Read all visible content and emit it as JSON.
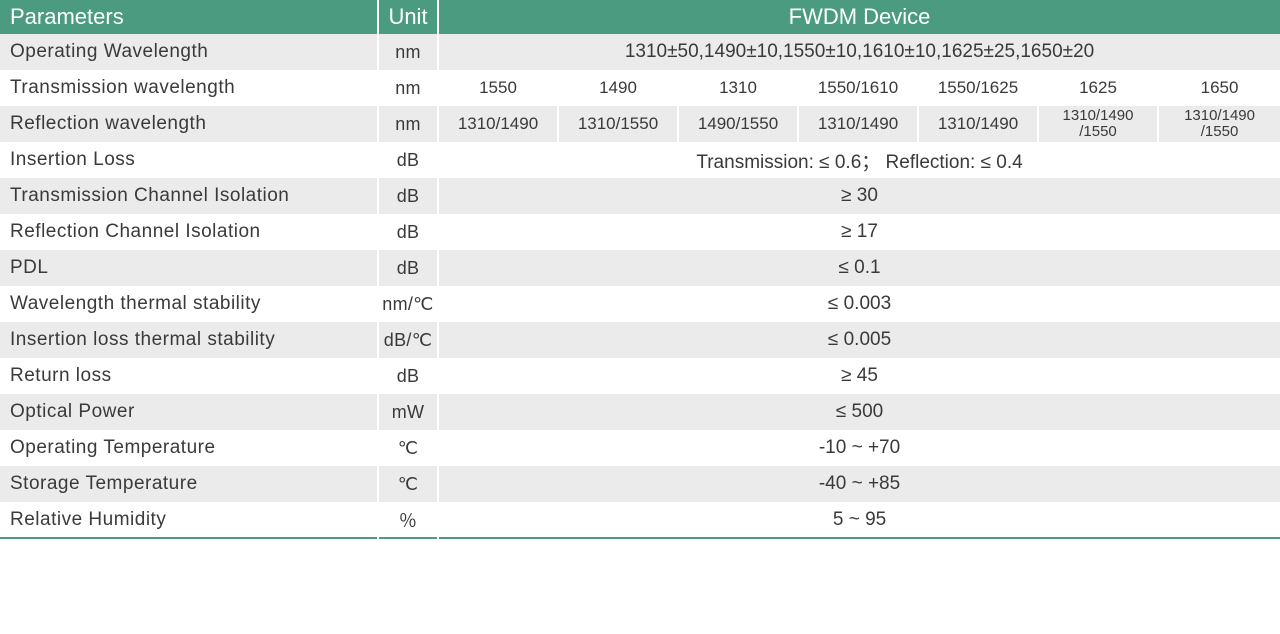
{
  "header": {
    "parameters": "Parameters",
    "unit": "Unit",
    "device": "FWDM Device"
  },
  "col_widths": {
    "param": 378,
    "unit": 60,
    "data_each": 120
  },
  "colors": {
    "header_bg": "#4a9b7f",
    "header_fg": "#ffffff",
    "alt_bg": "#ebebeb",
    "text": "#3a3a3a",
    "border": "#ffffff",
    "bottom_border": "#4a9b7f"
  },
  "rows": [
    {
      "param": "Operating Wavelength",
      "unit": "nm",
      "span": true,
      "value": "1310±50,1490±10,1550±10,1610±10,1625±25,1650±20",
      "alt": true
    },
    {
      "param": "Transmission wavelength",
      "unit": "nm",
      "span": false,
      "cells": [
        "1550",
        "1490",
        "1310",
        "1550/1610",
        "1550/1625",
        "1625",
        "1650"
      ],
      "alt": false
    },
    {
      "param": "Reflection wavelength",
      "unit": "nm",
      "span": false,
      "cells": [
        "1310/1490",
        "1310/1550",
        "1490/1550",
        "1310/1490",
        "1310/1490",
        "1310/1490\n/1550",
        "1310/1490\n/1550"
      ],
      "alt": true,
      "small_last2": true
    },
    {
      "param": "Insertion Loss",
      "unit": "dB",
      "span": true,
      "value": "Transmission: ≤ 0.6； Reflection: ≤ 0.4",
      "alt": false
    },
    {
      "param": "Transmission Channel Isolation",
      "unit": "dB",
      "span": true,
      "value": "≥ 30",
      "alt": true
    },
    {
      "param": "Reflection Channel Isolation",
      "unit": "dB",
      "span": true,
      "value": "≥ 17",
      "alt": false
    },
    {
      "param": "PDL",
      "unit": "dB",
      "span": true,
      "value": "≤ 0.1",
      "alt": true
    },
    {
      "param": "Wavelength thermal stability",
      "unit": "nm/℃",
      "span": true,
      "value": "≤ 0.003",
      "alt": false
    },
    {
      "param": "Insertion loss thermal stability",
      "unit": "dB/℃",
      "span": true,
      "value": "≤ 0.005",
      "alt": true
    },
    {
      "param": "Return loss",
      "unit": "dB",
      "span": true,
      "value": "≥ 45",
      "alt": false
    },
    {
      "param": "Optical Power",
      "unit": "mW",
      "span": true,
      "value": "≤ 500",
      "alt": true
    },
    {
      "param": "Operating Temperature",
      "unit": "℃",
      "span": true,
      "value": "-10 ~ +70",
      "alt": false
    },
    {
      "param": "Storage Temperature",
      "unit": "℃",
      "span": true,
      "value": "-40 ~ +85",
      "alt": true
    },
    {
      "param": "Relative Humidity",
      "unit": "％",
      "span": true,
      "value": "5 ~ 95",
      "alt": false,
      "bottom": true
    }
  ]
}
